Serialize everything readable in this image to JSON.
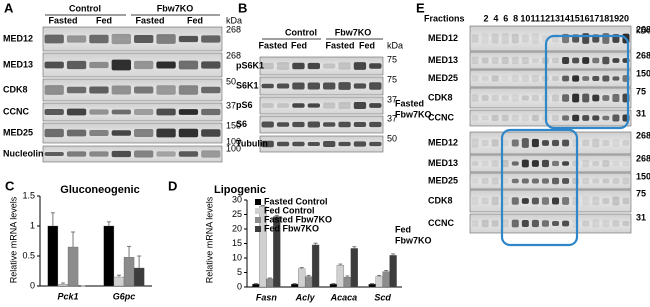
{
  "panel_a": {
    "label": "A",
    "groups": [
      "Control",
      "Fbw7KO"
    ],
    "lanes": [
      "Fasted",
      "Fed",
      "Fasted",
      "Fed"
    ],
    "unit": "kDa",
    "rows": [
      {
        "name": "MED12",
        "markers": [
          "268"
        ]
      },
      {
        "name": "MED13",
        "markers": [
          "268"
        ]
      },
      {
        "name": "CDK8",
        "markers": [
          "50"
        ]
      },
      {
        "name": "CCNC",
        "markers": [
          "37"
        ]
      },
      {
        "name": "MED25",
        "markers": [
          "150",
          "100"
        ]
      },
      {
        "name": "Nucleolin",
        "markers": [
          "100"
        ]
      }
    ]
  },
  "panel_b": {
    "label": "B",
    "groups": [
      "Control",
      "Fbw7KO"
    ],
    "lanes": [
      "Fasted",
      "Fed",
      "Fasted",
      "Fed"
    ],
    "unit": "kDa",
    "rows": [
      {
        "name": "pS6K1",
        "markers": [
          "75"
        ]
      },
      {
        "name": "S6K1",
        "markers": [
          "75"
        ]
      },
      {
        "name": "pS6",
        "markers": [
          "37"
        ]
      },
      {
        "name": "S6",
        "markers": [
          "37"
        ]
      },
      {
        "name": "Tubulin",
        "markers": [
          "50"
        ]
      }
    ]
  },
  "panel_e": {
    "label": "E",
    "fractions_label": "Fractions",
    "fractions": [
      "2",
      "4",
      "6",
      "8",
      "10",
      "11",
      "12",
      "13",
      "14",
      "15",
      "16",
      "17",
      "18",
      "19",
      "20"
    ],
    "unit": "kDa",
    "blocks": [
      {
        "condition": [
          "Fasted",
          "Fbw7KO"
        ],
        "rows": [
          {
            "name": "MED12",
            "marker": "268"
          },
          {
            "name": "MED13",
            "marker": "268"
          },
          {
            "name": "MED25",
            "marker": "150"
          },
          {
            "name": "CDK8",
            "marker": "75"
          },
          {
            "name": "CCNC",
            "marker": "31"
          }
        ]
      },
      {
        "condition": [
          "Fed",
          "Fbw7KO"
        ],
        "rows": [
          {
            "name": "MED12",
            "marker": "268"
          },
          {
            "name": "MED13",
            "marker": "268"
          },
          {
            "name": "MED25",
            "marker": "150"
          },
          {
            "name": "CDK8",
            "marker": "75"
          },
          {
            "name": "CCNC",
            "marker": "31"
          }
        ]
      }
    ]
  },
  "chart_data": [
    {
      "type": "bar",
      "label": "C",
      "title": "Gluconeogenic",
      "y_label": "Relative mRNA levels",
      "categories": [
        "Pck1",
        "G6pc"
      ],
      "ylim": [
        0,
        1.5
      ],
      "yticks": [
        0,
        0.5,
        1,
        1.5
      ],
      "series": [
        {
          "color": "#000000",
          "values": [
            1.0,
            1.0
          ],
          "errors": [
            0.22,
            0.07
          ]
        },
        {
          "color": "#d0d0d0",
          "values": [
            0.03,
            0.15
          ],
          "errors": [
            0.02,
            0.03
          ]
        },
        {
          "color": "#8c8c8c",
          "values": [
            0.65,
            0.48
          ],
          "errors": [
            0.25,
            0.18
          ]
        },
        {
          "color": "#3c3c3c",
          "values": [
            0.0,
            0.3
          ],
          "errors": [
            0.0,
            0.2
          ]
        }
      ]
    },
    {
      "type": "bar",
      "label": "D",
      "title": "Lipogenic",
      "y_label": "Relative mRNA levels",
      "categories": [
        "Fasn",
        "Acly",
        "Acaca",
        "Scd"
      ],
      "ylim": [
        0,
        30
      ],
      "yticks": [
        0,
        5,
        10,
        15,
        20,
        25,
        30
      ],
      "legend": "top-left",
      "series": [
        {
          "name": "Fasted Control",
          "color": "#000000",
          "values": [
            1.0,
            1.0,
            1.0,
            1.0
          ],
          "errors": [
            0.2,
            0.2,
            0.2,
            0.2
          ]
        },
        {
          "name": "Fed Control",
          "color": "#d0d0d0",
          "values": [
            27.8,
            6.3,
            7.5,
            3.6
          ],
          "errors": [
            0.3,
            0.4,
            0.4,
            0.4
          ]
        },
        {
          "name": "Fasted Fbw7KO",
          "color": "#8c8c8c",
          "values": [
            2.8,
            3.6,
            3.4,
            5.3
          ],
          "errors": [
            0.3,
            0.4,
            0.4,
            0.4
          ]
        },
        {
          "name": "Fed Fbw7KO",
          "color": "#3c3c3c",
          "values": [
            24.3,
            14.5,
            13.3,
            10.9
          ],
          "errors": [
            0.4,
            0.6,
            0.6,
            0.5
          ]
        }
      ]
    }
  ]
}
